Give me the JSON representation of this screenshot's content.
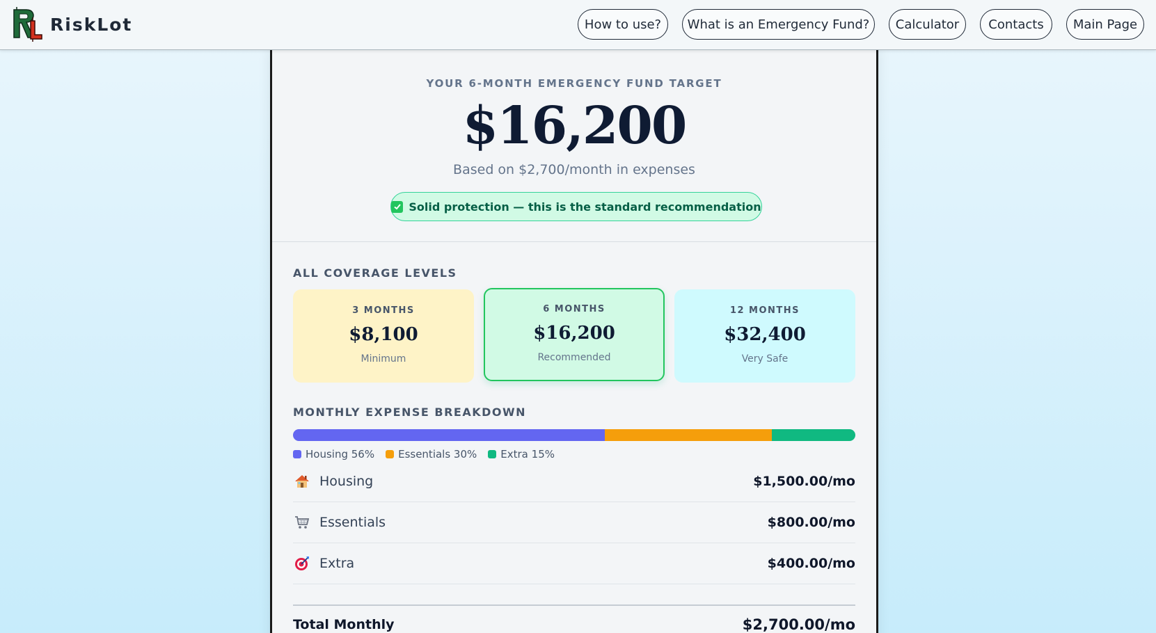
{
  "brand": {
    "name": "RiskLot",
    "logo_letters": "RL"
  },
  "nav": {
    "items": [
      {
        "label": "How to use?"
      },
      {
        "label": "What is an Emergency Fund?"
      },
      {
        "label": "Calculator"
      },
      {
        "label": "Contacts"
      },
      {
        "label": "Main Page"
      }
    ]
  },
  "hero": {
    "label": "YOUR 6-MONTH EMERGENCY FUND TARGET",
    "amount": "$16,200",
    "subtitle": "Based on $2,700/month in expenses",
    "badge": "Solid protection — this is the standard recommendation",
    "badge_icon": "check-box-icon"
  },
  "coverage": {
    "title": "ALL COVERAGE LEVELS",
    "tiers": [
      {
        "label": "3 MONTHS",
        "amount": "$8,100",
        "note": "Minimum",
        "color": "#fef3c7"
      },
      {
        "label": "6 MONTHS",
        "amount": "$16,200",
        "note": "Recommended",
        "color": "#d1fae5",
        "selected": true
      },
      {
        "label": "12 MONTHS",
        "amount": "$32,400",
        "note": "Very Safe",
        "color": "#cffafe"
      }
    ]
  },
  "breakdown": {
    "title": "MONTHLY EXPENSE BREAKDOWN",
    "segments": [
      {
        "name": "Housing",
        "percent": 56,
        "legend": "Housing 56%",
        "color": "#6366f1"
      },
      {
        "name": "Essentials",
        "percent": 30,
        "legend": "Essentials 30%",
        "color": "#f59e0b"
      },
      {
        "name": "Extra",
        "percent": 15,
        "legend": "Extra 15%",
        "color": "#10b981"
      }
    ],
    "rows": [
      {
        "icon": "house-icon",
        "name": "Housing",
        "value": "$1,500.00/mo"
      },
      {
        "icon": "shopping-cart-icon",
        "name": "Essentials",
        "value": "$800.00/mo"
      },
      {
        "icon": "target-icon",
        "name": "Extra",
        "value": "$400.00/mo"
      }
    ],
    "total": {
      "label": "Total Monthly",
      "value": "$2,700.00/mo"
    }
  }
}
